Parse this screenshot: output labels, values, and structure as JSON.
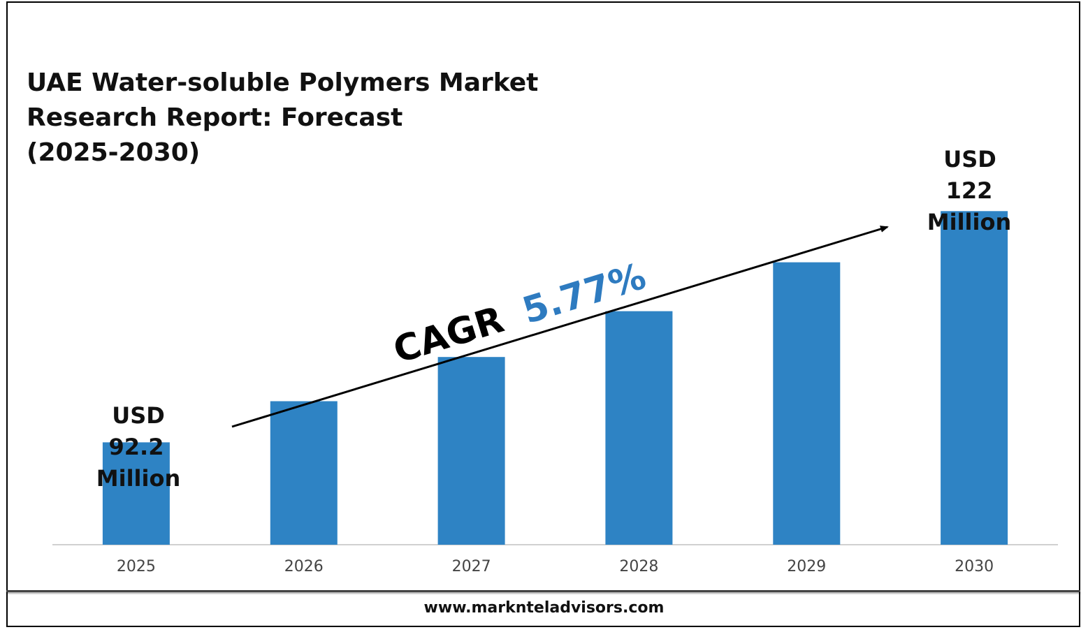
{
  "title_lines": [
    "UAE Water-soluble Polymers Market",
    "Research Report: Forecast",
    "(2025-2030)"
  ],
  "footer": {
    "website": "www.marknteladvisors.com"
  },
  "colors": {
    "bar": "#2e83c4",
    "cagr_value": "#2e7bc0",
    "text": "#111111",
    "tick": "#444444",
    "axis": "#d0d0d0"
  },
  "annotations": {
    "cagr_label": "CAGR",
    "cagr_value": "5.77%",
    "start_label": [
      "USD",
      "92.2",
      "Million"
    ],
    "end_label": [
      "USD",
      "122",
      "Million"
    ]
  },
  "chart_data": {
    "type": "bar",
    "title": "UAE Water-soluble Polymers Market Research Report: Forecast (2025-2030)",
    "categories": [
      "2025",
      "2026",
      "2027",
      "2028",
      "2029",
      "2030"
    ],
    "series": [
      {
        "values": [
          92.2,
          97.5,
          103.2,
          109.1,
          115.4,
          122
        ]
      }
    ],
    "unit": "USD Million",
    "ylim": [
      79,
      125
    ],
    "grid": false,
    "legend": "none"
  }
}
